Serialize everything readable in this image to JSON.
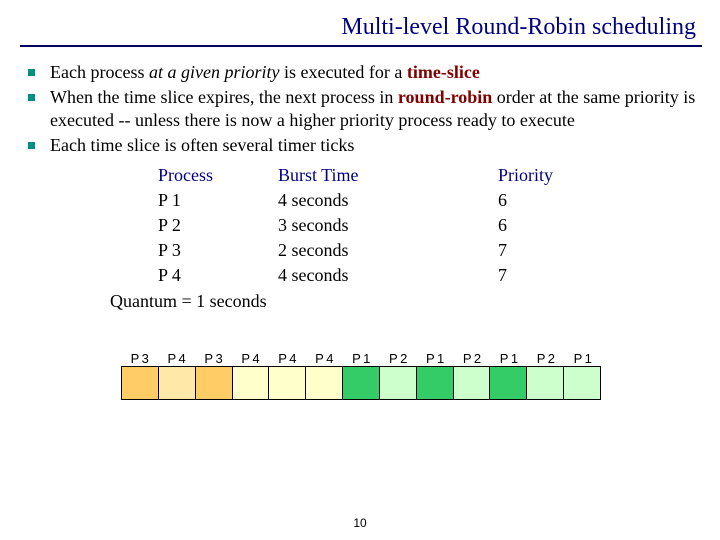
{
  "title": "Multi-level Round-Robin scheduling",
  "bullets": {
    "b1_pre": "Each process ",
    "b1_italic": "at a given priority",
    "b1_mid": " is executed for a ",
    "b1_bold": "time-slice",
    "b2_pre": "When the time slice expires, the next process in ",
    "b2_bold": "round-robin",
    "b2_post": " order at the same priority is executed -- unless there is now a higher priority process ready to execute",
    "b3": "Each time slice is often several timer ticks"
  },
  "table": {
    "head": {
      "c1": "Process",
      "c2": "Burst Time",
      "c3": "Priority"
    },
    "rows": [
      {
        "c1": "P 1",
        "c2": "4 seconds",
        "c3": "6"
      },
      {
        "c1": "P 2",
        "c2": "3 seconds",
        "c3": "6"
      },
      {
        "c1": "P 3",
        "c2": "2 seconds",
        "c3": "7"
      },
      {
        "c1": "P 4",
        "c2": "4 seconds",
        "c3": "7"
      }
    ]
  },
  "quantum": "Quantum = 1 seconds",
  "gantt": {
    "labels": [
      "P 3",
      "P 4",
      "P 3",
      "P 4",
      "P 4",
      "P 4",
      "P 1",
      "P 2",
      "P 1",
      "P 2",
      "P 1",
      "P 2",
      "P 1"
    ],
    "colors": [
      "#ffcc66",
      "#ffe8a8",
      "#ffcc66",
      "#ffffcc",
      "#ffffcc",
      "#ffffcc",
      "#33cc66",
      "#ccffcc",
      "#33cc66",
      "#ccffcc",
      "#33cc66",
      "#ccffcc",
      "#ccffcc"
    ]
  },
  "page_number": "10",
  "style": {
    "title_color": "#000080",
    "rule_color": "#000060",
    "bullet_color": "#009080",
    "maroon": "#800000",
    "navy": "#000080"
  }
}
